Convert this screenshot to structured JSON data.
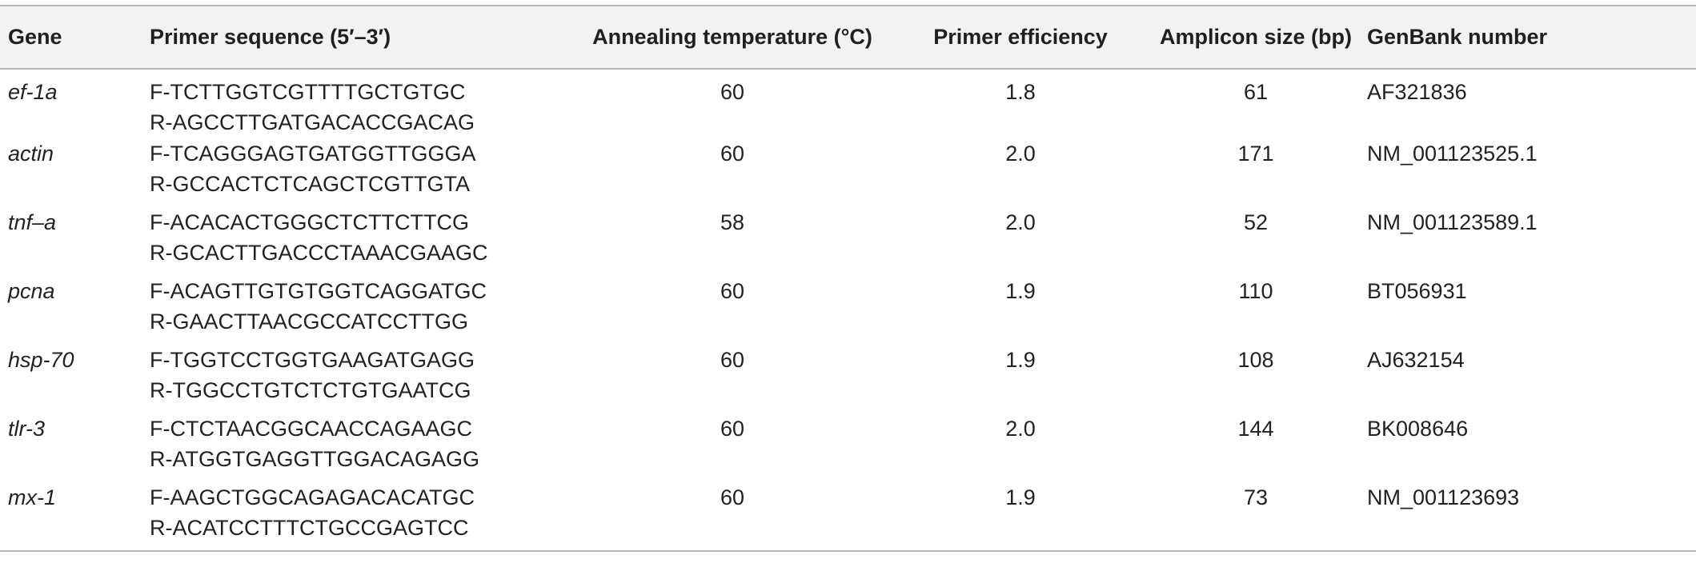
{
  "table": {
    "headers": {
      "gene": "Gene",
      "primer": "Primer sequence (5′–3′)",
      "annealing": "Annealing temperature (°C)",
      "efficiency": "Primer efficiency",
      "amplicon": "Amplicon size (bp)",
      "genbank": "GenBank number"
    },
    "rows": [
      {
        "gene": "ef-1a",
        "forward": "F-TCTTGGTCGTTTTGCTGTGC",
        "reverse": "R-AGCCTTGATGACACCGACAG",
        "annealing": "60",
        "efficiency": "1.8",
        "amplicon": "61",
        "genbank": "AF321836"
      },
      {
        "gene": "actin",
        "forward": "F-TCAGGGAGTGATGGTTGGGA",
        "reverse": "R-GCCACTCTCAGCTCGTTGTA",
        "annealing": "60",
        "efficiency": "2.0",
        "amplicon": "171",
        "genbank": "NM_001123525.1"
      },
      {
        "gene": "tnf–a",
        "forward": "F-ACACACTGGGCTCTTCTTCG",
        "reverse": "R-GCACTTGACCCTAAACGAAGC",
        "annealing": "58",
        "efficiency": "2.0",
        "amplicon": "52",
        "genbank": "NM_001123589.1"
      },
      {
        "gene": "pcna",
        "forward": "F-ACAGTTGTGTGGTCAGGATGC",
        "reverse": "R-GAACTTAACGCCATCCTTGG",
        "annealing": "60",
        "efficiency": "1.9",
        "amplicon": "110",
        "genbank": "BT056931"
      },
      {
        "gene": "hsp-70",
        "forward": "F-TGGTCCTGGTGAAGATGAGG",
        "reverse": "R-TGGCCTGTCTCTGTGAATCG",
        "annealing": "60",
        "efficiency": "1.9",
        "amplicon": "108",
        "genbank": "AJ632154"
      },
      {
        "gene": "tlr-3",
        "forward": "F-CTCTAACGGCAACCAGAAGC",
        "reverse": "R-ATGGTGAGGTTGGACAGAGG",
        "annealing": "60",
        "efficiency": "2.0",
        "amplicon": "144",
        "genbank": "BK008646"
      },
      {
        "gene": "mx-1",
        "forward": "F-AAGCTGGCAGAGACACATGC",
        "reverse": "R-ACATCCTTTCTGCCGAGTCC",
        "annealing": "60",
        "efficiency": "1.9",
        "amplicon": "73",
        "genbank": "NM_001123693"
      }
    ]
  }
}
